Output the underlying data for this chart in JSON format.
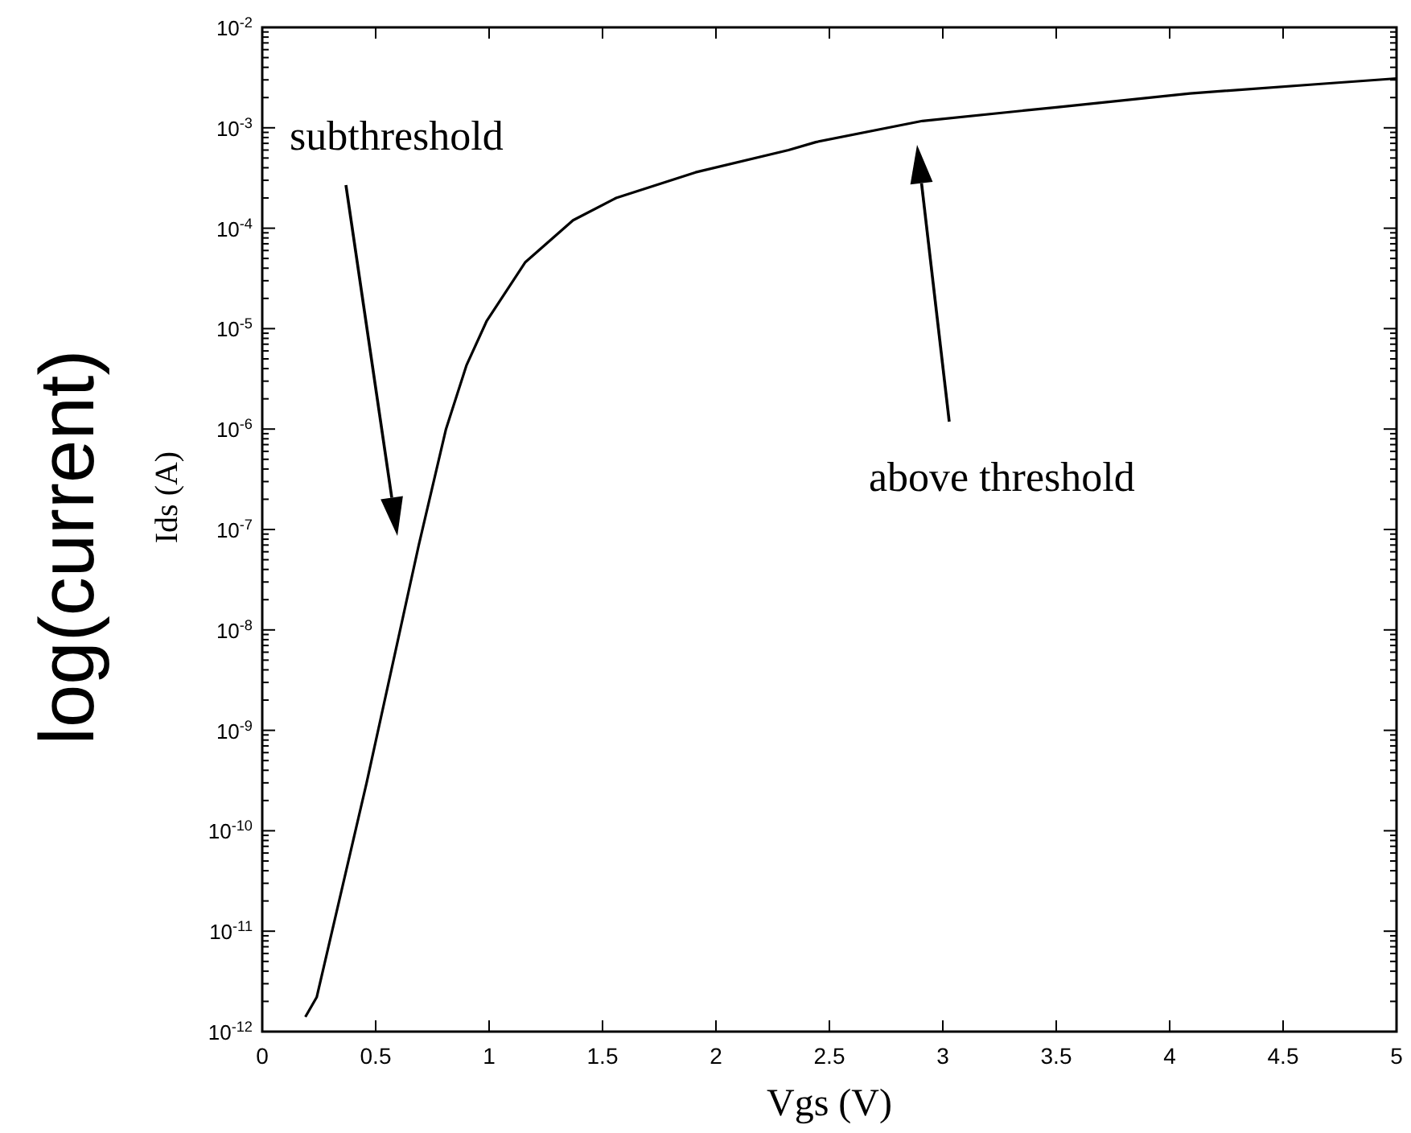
{
  "chart_data": {
    "type": "line",
    "xlabel": "Vgs (V)",
    "ylabel": "Ids (A)",
    "log": "y",
    "xlim": [
      0,
      5
    ],
    "xticks": [
      0,
      0.5,
      1,
      1.5,
      2,
      2.5,
      3,
      3.5,
      4,
      4.5,
      5
    ],
    "ylim": [
      1e-12,
      0.01
    ],
    "yticks": [
      {
        "value": 1e-12,
        "label": "10$^{-12}$"
      },
      {
        "value": 1e-11,
        "label": "10$^{-11}$"
      },
      {
        "value": 1e-10,
        "label": "10$^{-10}$"
      },
      {
        "value": 1e-09,
        "label": "10$^{-9}$"
      },
      {
        "value": 1e-08,
        "label": "10$^{-8}$"
      },
      {
        "value": 1e-07,
        "label": "10$^{-7}$"
      },
      {
        "value": 1e-06,
        "label": "10$^{-6}$"
      },
      {
        "value": 1e-05,
        "label": "10$^{-5}$"
      },
      {
        "value": 0.0001,
        "label": "10$^{-4}$"
      },
      {
        "value": 0.001,
        "label": "10$^{-3}$"
      },
      {
        "value": 0.01,
        "label": "10$^{-2}$"
      }
    ],
    "x": [
      0.19,
      0.24,
      0.46,
      0.69,
      0.81,
      0.9,
      0.99,
      1.16,
      1.37,
      1.56,
      1.91,
      2.32,
      2.44,
      2.91,
      3.5,
      4.09,
      4.68,
      5.0
    ],
    "series": [
      {
        "color": "#000000",
        "values": [
          1.4e-12,
          2.2e-12,
          3e-10,
          7e-08,
          1e-06,
          4.3e-06,
          1.2e-05,
          4.6e-05,
          0.00012,
          0.0002,
          0.00036,
          0.0006,
          0.00072,
          0.00117,
          0.0016,
          0.0022,
          0.00275,
          0.0031
        ]
      }
    ],
    "annotations": [
      "subthreshold",
      "above threshold",
      "log(current)"
    ]
  }
}
